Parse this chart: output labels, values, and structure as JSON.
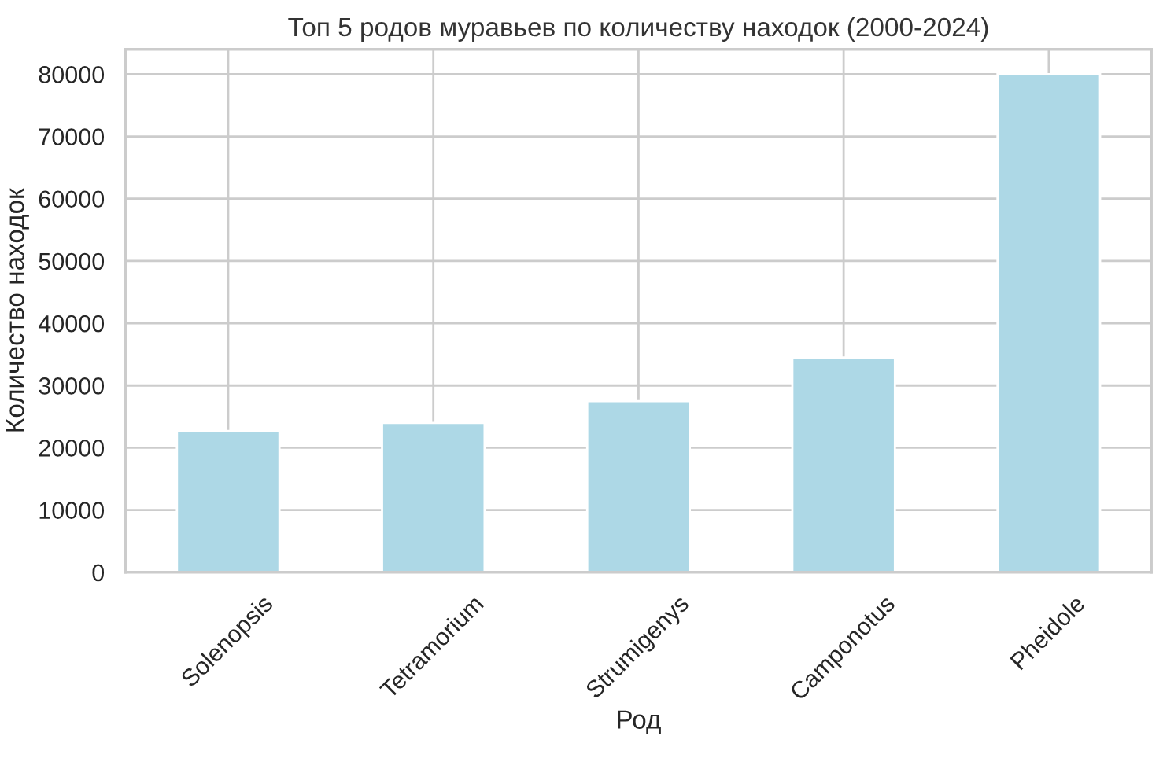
{
  "chart_data": {
    "type": "bar",
    "title": "Топ 5 родов муравьев по количеству находок (2000-2024)",
    "xlabel": "Род",
    "ylabel": "Количество находок",
    "categories": [
      "Solenopsis",
      "Tetramorium",
      "Strumigenys",
      "Camponotus",
      "Pheidole"
    ],
    "values": [
      22700,
      24000,
      27500,
      34500,
      80000
    ],
    "color": "#add8e6",
    "ylim": [
      0,
      84000
    ],
    "yticks": [
      0,
      10000,
      20000,
      30000,
      40000,
      50000,
      60000,
      70000,
      80000
    ],
    "grid": true
  }
}
